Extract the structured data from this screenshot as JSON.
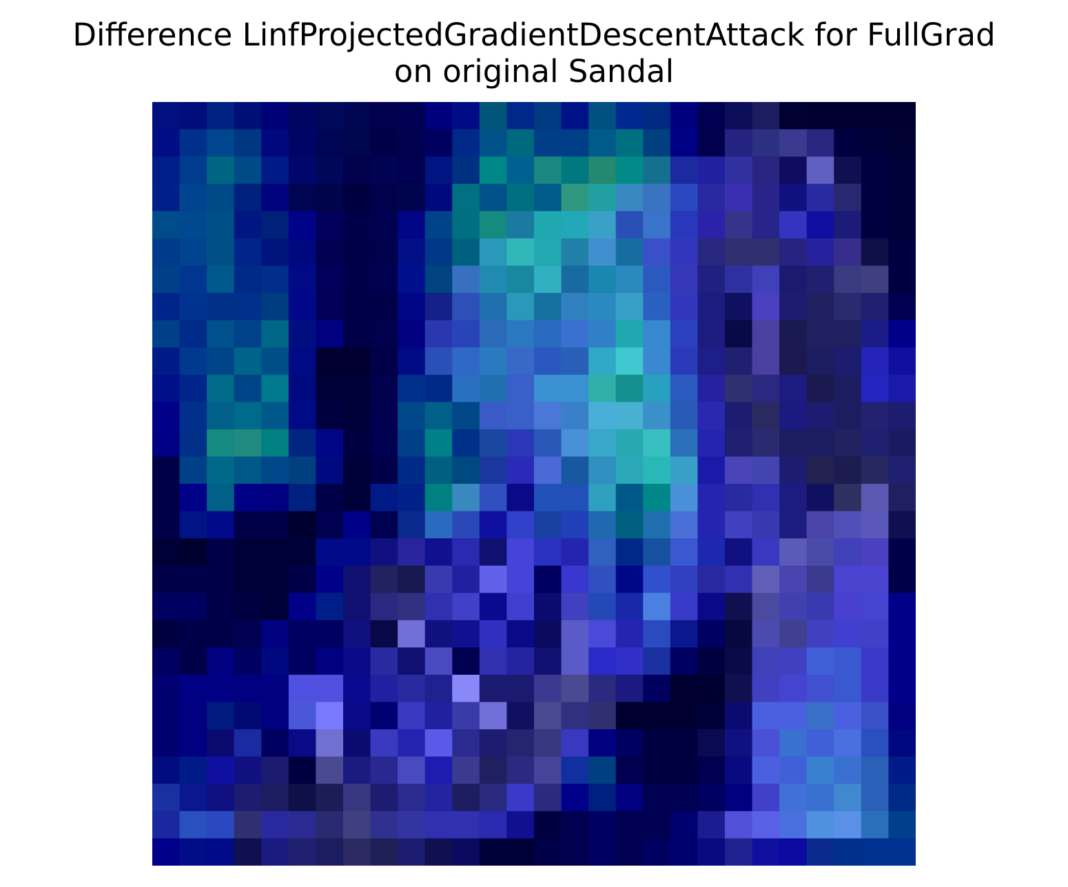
{
  "chart_data": {
    "type": "heatmap",
    "title_lines": [
      "Difference LinfProjectedGradientDescentAttack for FullGrad",
      "on original Sandal"
    ],
    "axes_visible": false,
    "grid": false,
    "legend": "none",
    "rows": 28,
    "cols": 28,
    "colors": [
      "#00107f",
      "#000c7a",
      "#002280",
      "#000f76",
      "#000077",
      "#000561",
      "#00085a",
      "#000552",
      "#00004d",
      "#000052",
      "#00007c",
      "#000c85",
      "#005578",
      "#00288a",
      "#003a80",
      "#001288",
      "#005082",
      "#002990",
      "#002a80",
      "#00007f",
      "#000050",
      "#0b0d58",
      "#1c1c60",
      "#000032",
      "#000030",
      "#000030",
      "#000030",
      "#000030",
      "#000d84",
      "#00318a",
      "#00468e",
      "#003780",
      "#00077f",
      "#000565",
      "#000455",
      "#00064d",
      "#000048",
      "#000250",
      "#000060",
      "#00298a",
      "#00508a",
      "#006980",
      "#003e88",
      "#003e88",
      "#005a8a",
      "#007080",
      "#004080",
      "#000085",
      "#00004d",
      "#242480",
      "#2b3080",
      "#3a3a90",
      "#282880",
      "#000040",
      "#000038",
      "#000033",
      "#001e88",
      "#003c8e",
      "#006582",
      "#004a88",
      "#001a86",
      "#00066a",
      "#000659",
      "#00004c",
      "#000352",
      "#000050",
      "#001582",
      "#003080",
      "#008888",
      "#006090",
      "#1a8880",
      "#00787f",
      "#258870",
      "#008a88",
      "#157090",
      "#1b2a9e",
      "#2020a0",
      "#3030a0",
      "#282480",
      "#100c60",
      "#6060c0",
      "#101050",
      "#000040",
      "#000038",
      "#001f88",
      "#004490",
      "#004a88",
      "#00207e",
      "#00037e",
      "#000553",
      "#000448",
      "#000040",
      "#00004c",
      "#00034d",
      "#000a7e",
      "#007082",
      "#00508a",
      "#007080",
      "#005a8a",
      "#309880",
      "#20a0a0",
      "#3a88c0",
      "#3a74c0",
      "#2a48bf",
      "#2828a0",
      "#3a2fb0",
      "#28248a",
      "#101080",
      "#2a2aa0",
      "#282870",
      "#000040",
      "#000038",
      "#004c8a",
      "#004890",
      "#005088",
      "#001680",
      "#00207a",
      "#000288",
      "#00005c",
      "#000048",
      "#000050",
      "#000585",
      "#004388",
      "#007080",
      "#158a80",
      "#1a7aa0",
      "#20a8b0",
      "#22a8b8",
      "#3aa0c8",
      "#2a50b8",
      "#3a74c8",
      "#2838bd",
      "#2a22a8",
      "#34348a",
      "#28248a",
      "#3434c0",
      "#1010a0",
      "#1b1b78",
      "#000040",
      "#000038",
      "#003a8a",
      "#004490",
      "#005086",
      "#00248a",
      "#00147e",
      "#000880",
      "#000050",
      "#000048",
      "#00004c",
      "#000f85",
      "#003887",
      "#006080",
      "#2a98b8",
      "#30b8b8",
      "#22a8b0",
      "#2080a8",
      "#4090d0",
      "#186da0",
      "#3a50c8",
      "#3236bd",
      "#282880",
      "#2f2f70",
      "#303070",
      "#262480",
      "#26229e",
      "#362e8a",
      "#101048",
      "#000040",
      "#004088",
      "#003590",
      "#00588c",
      "#002a88",
      "#002e8a",
      "#000a86",
      "#00005a",
      "#000048",
      "#000050",
      "#00108c",
      "#004380",
      "#3870c0",
      "#208ab0",
      "#1888a0",
      "#30b0c0",
      "#186aa0",
      "#1888b0",
      "#2a8ac0",
      "#2a5ac0",
      "#3438b8",
      "#202080",
      "#2e30a0",
      "#4040b8",
      "#1a1a70",
      "#202070",
      "#3a3a80",
      "#404080",
      "#000040",
      "#00258a",
      "#003390",
      "#003088",
      "#00308a",
      "#003d80",
      "#000788",
      "#000058",
      "#000048",
      "#000048",
      "#000585",
      "#16208a",
      "#2c50b8",
      "#2070b0",
      "#2a98b8",
      "#1670a0",
      "#3080c0",
      "#2a8ac0",
      "#38a0c8",
      "#2a60c0",
      "#3236bd",
      "#1c1c80",
      "#101060",
      "#4a40c0",
      "#1c1c70",
      "#202060",
      "#2a2a70",
      "#202070",
      "#000050",
      "#004088",
      "#002b88",
      "#00508c",
      "#00428a",
      "#006688",
      "#000e80",
      "#000080",
      "#000048",
      "#00004c",
      "#000080",
      "#2a38b0",
      "#2844b8",
      "#2a6ab8",
      "#2a78c0",
      "#2a6ac0",
      "#3a70d0",
      "#3080c8",
      "#20a8b0",
      "#3888d0",
      "#2a40bf",
      "#1c1c80",
      "#080a48",
      "#4a40a0",
      "#1a1a50",
      "#202060",
      "#202060",
      "#1c1c88",
      "#00008a",
      "#001a88",
      "#003a90",
      "#004488",
      "#00648a",
      "#004e88",
      "#000a84",
      "#000030",
      "#000030",
      "#000048",
      "#000a85",
      "#2a50b8",
      "#3068c8",
      "#2a7ac0",
      "#3868c8",
      "#2a58c0",
      "#2860b8",
      "#30a8c8",
      "#40c8d0",
      "#3a88d0",
      "#2a3ab8",
      "#1e1e88",
      "#202070",
      "#4a40a0",
      "#1a1a50",
      "#1c1c60",
      "#1c1c70",
      "#2424b8",
      "#1010a0",
      "#00108a",
      "#00258a",
      "#006a8a",
      "#004488",
      "#00788e",
      "#000a80",
      "#000038",
      "#000038",
      "#00004c",
      "#00308a",
      "#002a88",
      "#2a70c0",
      "#2070b0",
      "#3860c8",
      "#3a90d0",
      "#3a90d0",
      "#30b0a8",
      "#149090",
      "#28a0c0",
      "#2a5ac0",
      "#2420a0",
      "#2e3070",
      "#2a2880",
      "#1c1c80",
      "#1a1a50",
      "#1c1c60",
      "#2424c0",
      "#1a1aa8",
      "#000088",
      "#00308a",
      "#00608a",
      "#006a8a",
      "#00588a",
      "#000a84",
      "#000040",
      "#000038",
      "#000050",
      "#00488a",
      "#006088",
      "#004888",
      "#3a5ac8",
      "#3a60c8",
      "#4a78d8",
      "#3a80c8",
      "#48b0d8",
      "#48b0d0",
      "#3a90c8",
      "#2a5ab8",
      "#2a28b0",
      "#1c1c70",
      "#2a2a60",
      "#1a1a80",
      "#1c1c70",
      "#1c1c60",
      "#222270",
      "#1c1c70",
      "#000085",
      "#003088",
      "#158a80",
      "#208a80",
      "#008080",
      "#002680",
      "#000586",
      "#000040",
      "#000050",
      "#004088",
      "#008088",
      "#003088",
      "#1a48a0",
      "#2a38b8",
      "#2a58b8",
      "#4a90d8",
      "#38a8c8",
      "#28a8b0",
      "#38c0c0",
      "#2a70b8",
      "#2424b0",
      "#202070",
      "#2a2a70",
      "#1c1c60",
      "#1c1c60",
      "#222260",
      "#202070",
      "#1a1a60",
      "#000048",
      "#004088",
      "#006888",
      "#005888",
      "#00488a",
      "#004080",
      "#000a80",
      "#000038",
      "#000048",
      "#002a88",
      "#006080",
      "#004880",
      "#1a38a0",
      "#2a2ab8",
      "#4a6ad8",
      "#1858a0",
      "#3090c0",
      "#2aa8b8",
      "#28b8b8",
      "#38a0c8",
      "#1a1aa8",
      "#4a44b8",
      "#4444b0",
      "#1c1c70",
      "#222250",
      "#1c1c50",
      "#282860",
      "#202070",
      "#000048",
      "#000088",
      "#006088",
      "#000085",
      "#000080",
      "#002080",
      "#000048",
      "#000038",
      "#001a88",
      "#002288",
      "#008080",
      "#3a88c0",
      "#3050c0",
      "#0a0a88",
      "#2050b8",
      "#2050b8",
      "#30a0c0",
      "#005888",
      "#008888",
      "#4a90d8",
      "#2424b0",
      "#2a2aa0",
      "#3030b0",
      "#1c1c80",
      "#101060",
      "#303060",
      "#5a58b0",
      "#202060",
      "#000048",
      "#001485",
      "#000a88",
      "#000048",
      "#000048",
      "#000030",
      "#000050",
      "#000088",
      "#000050",
      "#0a2a90",
      "#2a6ac0",
      "#2a48b8",
      "#1010a0",
      "#3040c8",
      "#1840a0",
      "#2040b8",
      "#2068b0",
      "#006080",
      "#2070b0",
      "#4a70d8",
      "#2424b0",
      "#4040c0",
      "#3838b0",
      "#1c1c80",
      "#4a44a8",
      "#5050b8",
      "#5a58b8",
      "#101050",
      "#000038",
      "#000030",
      "#000048",
      "#000038",
      "#000038",
      "#000038",
      "#000a88",
      "#000a88",
      "#101080",
      "#28249e",
      "#101090",
      "#2a2ab0",
      "#101070",
      "#4444d8",
      "#2a30c0",
      "#2424b0",
      "#3060c0",
      "#002888",
      "#1850a0",
      "#3a58d0",
      "#1c28b0",
      "#101080",
      "#3a38c0",
      "#5a5ab8",
      "#4a4aa8",
      "#4040b8",
      "#4a40c0",
      "#000048",
      "#000048",
      "#000048",
      "#000048",
      "#000038",
      "#000038",
      "#000048",
      "#000088",
      "#101070",
      "#222260",
      "#181850",
      "#3a3ab0",
      "#2020a0",
      "#6060e8",
      "#4444d8",
      "#000060",
      "#3838d0",
      "#3050c0",
      "#000888",
      "#3050d0",
      "#3040c0",
      "#2828a0",
      "#3030b0",
      "#6060b8",
      "#4a44b0",
      "#3a3a90",
      "#4a44d0",
      "#4a44d0",
      "#000048",
      "#000060",
      "#000060",
      "#000048",
      "#000040",
      "#000038",
      "#000088",
      "#001e88",
      "#101070",
      "#2a2880",
      "#303080",
      "#3030b0",
      "#4040c8",
      "#0a0a90",
      "#4040d0",
      "#0a0a70",
      "#4040c0",
      "#2448b8",
      "#1828a8",
      "#4a80e0",
      "#3a3ac8",
      "#0a0a88",
      "#101050",
      "#4a4aa0",
      "#4040b0",
      "#3a3ab0",
      "#4a40d0",
      "#4444d0",
      "#000088",
      "#000040",
      "#000048",
      "#000048",
      "#000050",
      "#000080",
      "#000060",
      "#000060",
      "#101080",
      "#080848",
      "#7070d8",
      "#101080",
      "#101090",
      "#3030c0",
      "#0a0a88",
      "#0a0a60",
      "#5a5ac8",
      "#4a4ad8",
      "#2424b0",
      "#2a4ac0",
      "#0a1890",
      "#000060",
      "#080840",
      "#4a4ab0",
      "#404090",
      "#4040c0",
      "#4040d0",
      "#4040c8",
      "#00008a",
      "#000060",
      "#000048",
      "#000080",
      "#000060",
      "#000880",
      "#000060",
      "#000080",
      "#0a0a88",
      "#2a2aa0",
      "#101070",
      "#4a4ac0",
      "#000050",
      "#3030b0",
      "#2424a0",
      "#101070",
      "#5a5ac8",
      "#2a2ac8",
      "#3030c8",
      "#1a30a0",
      "#000060",
      "#000040",
      "#0a0a48",
      "#4040b8",
      "#4040c0",
      "#4060d8",
      "#3a58d0",
      "#3a3ac8",
      "#00008a",
      "#000070",
      "#000085",
      "#000085",
      "#000080",
      "#000080",
      "#5050e0",
      "#5050e0",
      "#0a0a90",
      "#2020a0",
      "#2a2aa0",
      "#202090",
      "#8888f8",
      "#1a1a70",
      "#1a1a70",
      "#3a3a90",
      "#4a4a90",
      "#2a2a80",
      "#1a1a80",
      "#000060",
      "#000030",
      "#000030",
      "#101050",
      "#4040c0",
      "#4444d0",
      "#4050d0",
      "#3a58d0",
      "#3a3ac8",
      "#00008a",
      "#000070",
      "#000080",
      "#001a80",
      "#000a70",
      "#000080",
      "#4a58d8",
      "#7a7aff",
      "#0a0a88",
      "#000070",
      "#3838c0",
      "#2020a0",
      "#3a3aa8",
      "#7070d8",
      "#101060",
      "#4a4a90",
      "#303080",
      "#303070",
      "#000030",
      "#000030",
      "#000030",
      "#000038",
      "#0a0a70",
      "#4a60e0",
      "#4a60e0",
      "#3a70c8",
      "#4a60e0",
      "#3a50c8",
      "#000080",
      "#000070",
      "#000080",
      "#0a0a70",
      "#1a2aa0",
      "#000060",
      "#0a0a88",
      "#7070d0",
      "#0a0a70",
      "#3a3ac0",
      "#2424b0",
      "#5a5ae8",
      "#2a2a90",
      "#1c1c70",
      "#242470",
      "#383880",
      "#3838c0",
      "#000080",
      "#000060",
      "#000040",
      "#000040",
      "#0a0a50",
      "#101080",
      "#4a50d8",
      "#3a70d0",
      "#4060d8",
      "#4a70e0",
      "#2a50c0",
      "#000880",
      "#000c80",
      "#001a88",
      "#1010a0",
      "#101080",
      "#1a1a70",
      "#000040",
      "#4a4a90",
      "#1a1a80",
      "#282890",
      "#4a4ac0",
      "#1c1cb0",
      "#3a3a90",
      "#202060",
      "#2a2a80",
      "#44449a",
      "#1030a0",
      "#004080",
      "#000050",
      "#000040",
      "#000040",
      "#000050",
      "#0a0a80",
      "#4a60e0",
      "#4060d8",
      "#3a80d0",
      "#3a70d0",
      "#2a60b8",
      "#001a88",
      "#1830a0",
      "#0a1890",
      "#101080",
      "#1c1c70",
      "#1c1c60",
      "#101048",
      "#1c1c58",
      "#383880",
      "#1c1c70",
      "#2a2a90",
      "#2424a0",
      "#1c1c60",
      "#2a2a80",
      "#3a3ac8",
      "#2a2a80",
      "#000088",
      "#002080",
      "#000080",
      "#000050",
      "#000050",
      "#000060",
      "#000080",
      "#4040c8",
      "#4070d8",
      "#3a70d0",
      "#4088d0",
      "#2a60b8",
      "#002a88",
      "#1a28a0",
      "#2a50c0",
      "#2a48c0",
      "#303070",
      "#2a2aa0",
      "#2a2a90",
      "#2a2a70",
      "#404080",
      "#303090",
      "#3434a0",
      "#3030b0",
      "#3030b0",
      "#2a2ab0",
      "#101090",
      "#000040",
      "#000050",
      "#000060",
      "#000050",
      "#000050",
      "#000070",
      "#1c1c90",
      "#5050d8",
      "#5a60e8",
      "#4a70e0",
      "#5090e0",
      "#5a90e8",
      "#2a70b8",
      "#00408a",
      "#00008a",
      "#000c88",
      "#000a88",
      "#101050",
      "#1a1a80",
      "#202070",
      "#1c1c60",
      "#2a2a60",
      "#202058",
      "#1c1c70",
      "#101050",
      "#0a0a60",
      "#000038",
      "#000038",
      "#000048",
      "#000050",
      "#000060",
      "#000050",
      "#000060",
      "#000070",
      "#0a0a80",
      "#202090",
      "#1010a0",
      "#0a0aa0",
      "#0a2a90",
      "#00308a",
      "#003090",
      "#003090"
    ]
  }
}
